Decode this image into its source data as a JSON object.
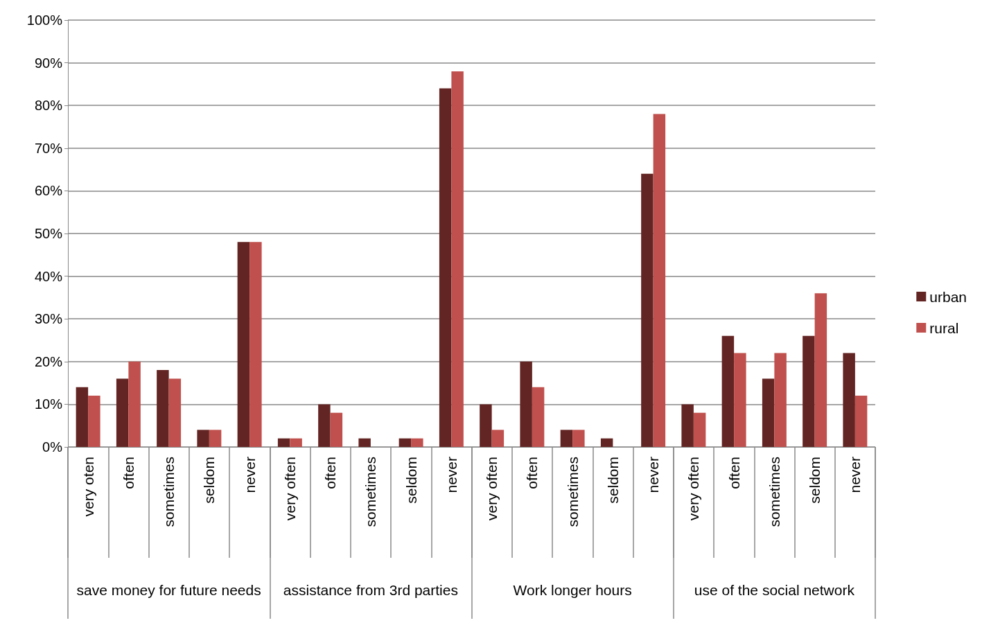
{
  "chart_data": {
    "type": "bar",
    "categories": [
      "very oten",
      "often",
      "sometimes",
      "seldom",
      "never",
      "very often",
      "often",
      "sometimes",
      "seldom",
      "never",
      "very often",
      "often",
      "sometimes",
      "seldom",
      "never",
      "very often",
      "often",
      "sometimes",
      "seldom",
      "never"
    ],
    "series": [
      {
        "name": "urban",
        "color": "#632523",
        "values": [
          14,
          16,
          18,
          4,
          48,
          2,
          10,
          2,
          2,
          84,
          10,
          20,
          4,
          2,
          64,
          10,
          26,
          16,
          26,
          22
        ]
      },
      {
        "name": "rural",
        "color": "#c0504d",
        "values": [
          12,
          20,
          16,
          4,
          48,
          2,
          8,
          0,
          2,
          88,
          4,
          14,
          4,
          0,
          78,
          8,
          22,
          22,
          36,
          12
        ]
      }
    ],
    "annotations": [
      "save money for future needs",
      "assistance from 3rd parties",
      "Work longer hours",
      "use of the social network"
    ],
    "ylim": [
      0,
      100
    ],
    "yticks": [
      {
        "value": 0,
        "label": "0%"
      },
      {
        "value": 10,
        "label": "10%"
      },
      {
        "value": 20,
        "label": "20%"
      },
      {
        "value": 30,
        "label": "30%"
      },
      {
        "value": 40,
        "label": "40%"
      },
      {
        "value": 50,
        "label": "50%"
      },
      {
        "value": 60,
        "label": "60%"
      },
      {
        "value": 70,
        "label": "70%"
      },
      {
        "value": 80,
        "label": "80%"
      },
      {
        "value": 90,
        "label": "90%"
      },
      {
        "value": 100,
        "label": "100%"
      }
    ],
    "grid": "y",
    "legend": "right"
  }
}
